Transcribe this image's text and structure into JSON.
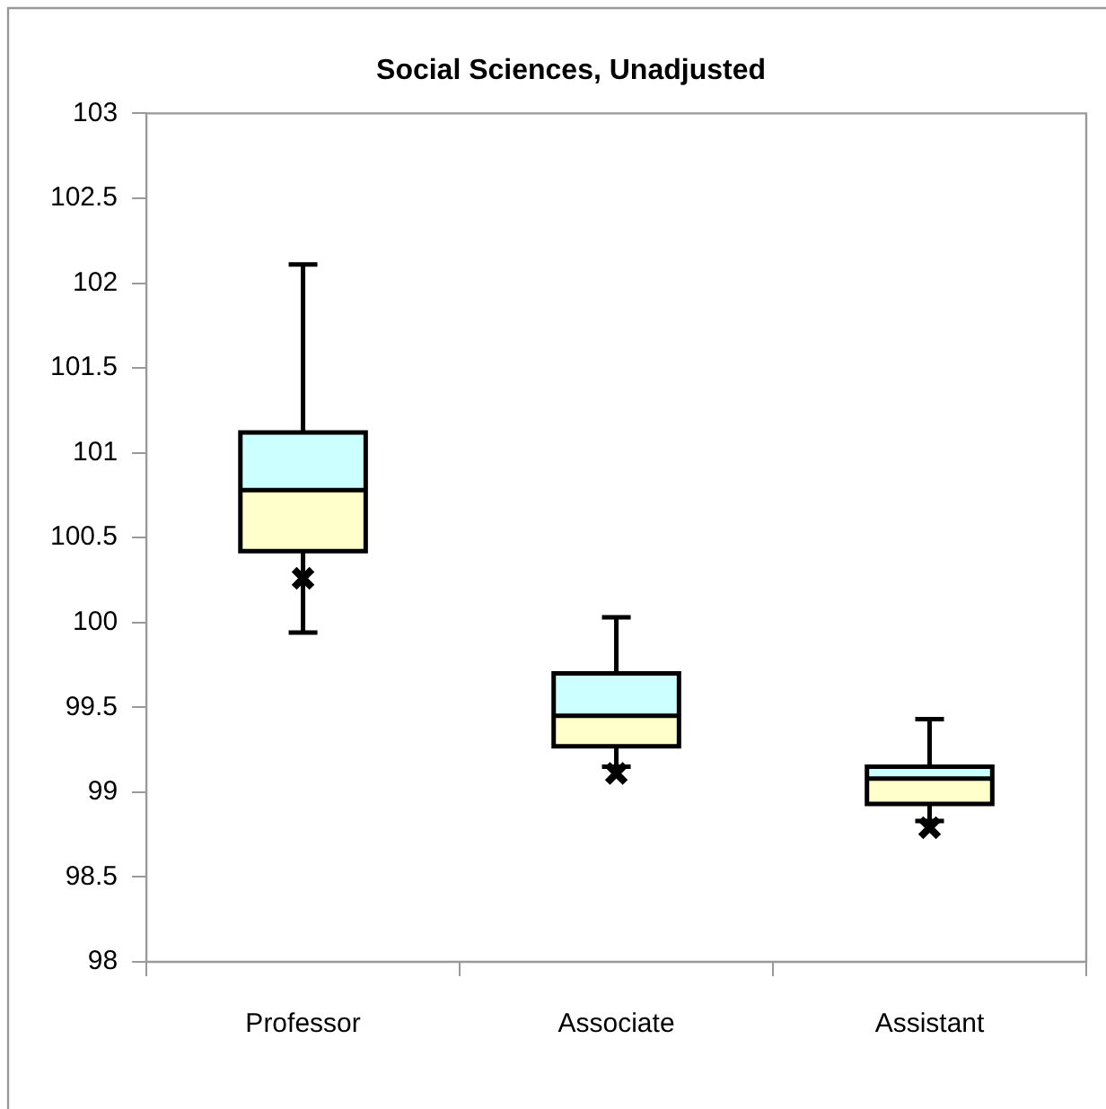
{
  "chart_data": {
    "type": "box",
    "title": "Social Sciences, Unadjusted",
    "categories": [
      "Professor",
      "Associate",
      "Assistant"
    ],
    "series": [
      {
        "color": "#ccffff",
        "boxes": [
          {
            "low": 99.94,
            "q1": 100.42,
            "median": 100.78,
            "q3": 101.12,
            "high": 102.11,
            "mean": 100.26
          },
          {
            "low": 99.15,
            "q1": 99.27,
            "median": 99.45,
            "q3": 99.7,
            "high": 100.03,
            "mean": 99.11
          },
          {
            "low": 98.83,
            "q1": 98.93,
            "median": 99.08,
            "q3": 99.15,
            "high": 99.43,
            "mean": 98.79
          }
        ]
      }
    ],
    "colors": [
      "#ffffcc",
      "#ffffcc",
      "#ffffcc"
    ],
    "marker": "cross",
    "ylim": [
      98,
      103
    ],
    "yticks": [
      98,
      98.5,
      99,
      99.5,
      100,
      100.5,
      101,
      101.5,
      102,
      102.5,
      103
    ],
    "grid": false,
    "legend": false
  }
}
